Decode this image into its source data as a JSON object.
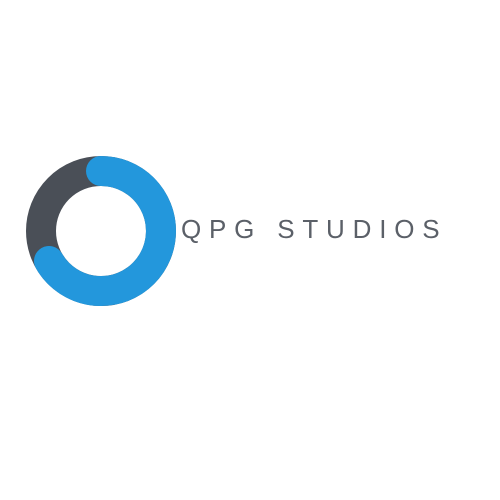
{
  "brand": {
    "name": "QPG STUDIOS",
    "icon": "ring-logo-icon",
    "colors": {
      "primary_blue": "#2397dc",
      "dark_gray": "#4a4f57",
      "text_gray": "#5b6068",
      "background": "#ffffff"
    }
  }
}
